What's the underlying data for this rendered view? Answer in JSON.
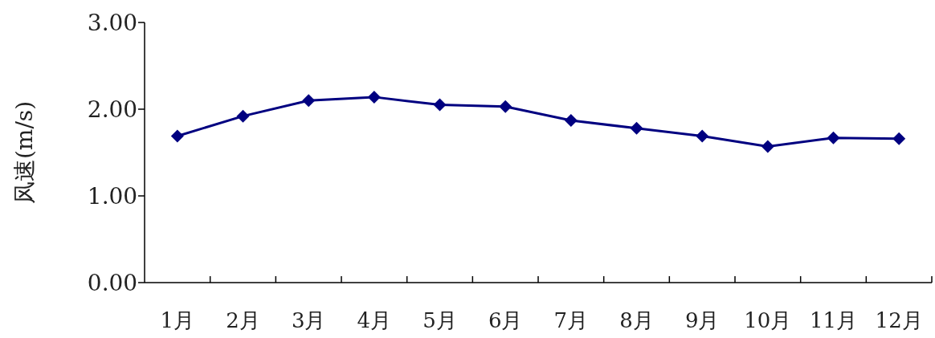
{
  "chart_data": {
    "type": "line",
    "ylabel": "风速(m/s)",
    "categories": [
      "1月",
      "2月",
      "3月",
      "4月",
      "5月",
      "6月",
      "7月",
      "8月",
      "9月",
      "10月",
      "11月",
      "12月"
    ],
    "series": [
      {
        "color": "#000080",
        "values": [
          1.69,
          1.92,
          2.1,
          2.14,
          2.05,
          2.03,
          1.87,
          1.78,
          1.69,
          1.57,
          1.67,
          1.66
        ]
      }
    ],
    "ylim": [
      0,
      3
    ],
    "yticks": [
      {
        "value": 0,
        "label": "0.00"
      },
      {
        "value": 1,
        "label": "1.00"
      },
      {
        "value": 2,
        "label": "2.00"
      },
      {
        "value": 3,
        "label": "3.00"
      }
    ],
    "marker": "diamond",
    "line_style": "solid",
    "grid": false
  }
}
